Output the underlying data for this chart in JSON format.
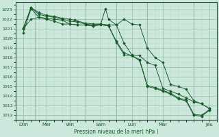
{
  "background_color": "#cce8dd",
  "grid_major_color": "#99bbaa",
  "grid_minor_color": "#b8d8cc",
  "line_color": "#1a5c2a",
  "title": "Pression niveau de la mer( hPa )",
  "ylim": [
    1011.5,
    1023.8
  ],
  "yticks": [
    1012,
    1013,
    1014,
    1015,
    1016,
    1017,
    1018,
    1019,
    1020,
    1021,
    1022,
    1023
  ],
  "xlim": [
    0,
    13
  ],
  "xtick_labels": [
    "Dim",
    "Mer",
    "Ven",
    "Sam",
    "Lun",
    "Mar",
    "Jeu"
  ],
  "xtick_positions": [
    0.5,
    2.0,
    3.5,
    5.5,
    7.5,
    9.5,
    12.5
  ],
  "vline_positions": [
    1.25,
    4.5,
    6.5,
    8.5,
    11.5
  ],
  "series1_x": [
    0.5,
    1.0,
    1.5,
    2.0,
    2.5,
    3.0,
    3.5,
    4.0,
    4.5,
    5.0,
    5.5,
    6.0,
    6.5,
    7.0,
    7.5,
    8.0,
    8.5,
    9.0,
    9.5,
    10.0,
    10.5,
    11.0,
    11.5,
    12.0,
    12.5
  ],
  "series1_y": [
    1020.6,
    1023.1,
    1022.2,
    1022.1,
    1022.0,
    1021.9,
    1021.5,
    1021.4,
    1021.4,
    1021.3,
    1021.4,
    1021.3,
    1019.6,
    1018.3,
    1018.2,
    1017.7,
    1015.0,
    1014.8,
    1014.5,
    1014.2,
    1013.7,
    1013.5,
    1012.0,
    1011.9,
    1012.5
  ],
  "series2_x": [
    0.5,
    1.0,
    1.5,
    2.0,
    2.5,
    3.0,
    3.5,
    4.0,
    4.5,
    5.0,
    5.5,
    6.0,
    6.5,
    7.0,
    7.5,
    8.0,
    8.5,
    9.0,
    9.5,
    10.0,
    10.5,
    11.0,
    11.5,
    12.0,
    12.5
  ],
  "series2_y": [
    1021.0,
    1023.2,
    1022.5,
    1022.3,
    1022.2,
    1022.0,
    1021.8,
    1021.7,
    1021.5,
    1021.4,
    1021.5,
    1021.3,
    1019.7,
    1018.5,
    1018.2,
    1017.8,
    1015.1,
    1014.9,
    1014.6,
    1014.3,
    1013.8,
    1013.6,
    1012.1,
    1012.0,
    1012.6
  ],
  "series3_x": [
    0.5,
    1.0,
    1.5,
    2.0,
    2.5,
    3.0,
    3.5,
    3.8,
    4.0,
    4.5,
    5.0,
    5.5,
    6.0,
    6.5,
    7.0,
    7.5,
    8.0,
    8.5,
    9.0,
    9.5,
    10.0,
    10.5,
    11.0,
    11.5,
    12.0,
    12.5
  ],
  "series3_y": [
    1021.1,
    1023.2,
    1022.7,
    1022.4,
    1022.3,
    1022.1,
    1022.0,
    1021.9,
    1021.8,
    1021.6,
    1021.5,
    1021.5,
    1021.4,
    1021.4,
    1022.0,
    1021.5,
    1021.4,
    1019.0,
    1018.0,
    1017.5,
    1015.2,
    1015.0,
    1014.7,
    1013.5,
    1013.2,
    1012.7
  ],
  "series4_x": [
    0.5,
    1.0,
    1.5,
    2.0,
    2.5,
    3.0,
    3.5,
    4.0,
    4.5,
    5.0,
    5.5,
    5.8,
    6.0,
    6.5,
    7.0,
    7.5,
    8.0,
    8.5,
    9.0,
    9.5,
    10.0,
    10.5,
    11.0,
    11.5,
    12.0,
    12.5
  ],
  "series4_y": [
    1021.0,
    1022.0,
    1022.2,
    1022.0,
    1021.8,
    1021.5,
    1021.5,
    1021.4,
    1021.4,
    1021.3,
    1021.5,
    1023.1,
    1022.0,
    1021.4,
    1019.5,
    1018.3,
    1018.2,
    1017.5,
    1017.2,
    1014.8,
    1014.5,
    1014.2,
    1013.8,
    1013.4,
    1013.2,
    1012.7
  ]
}
